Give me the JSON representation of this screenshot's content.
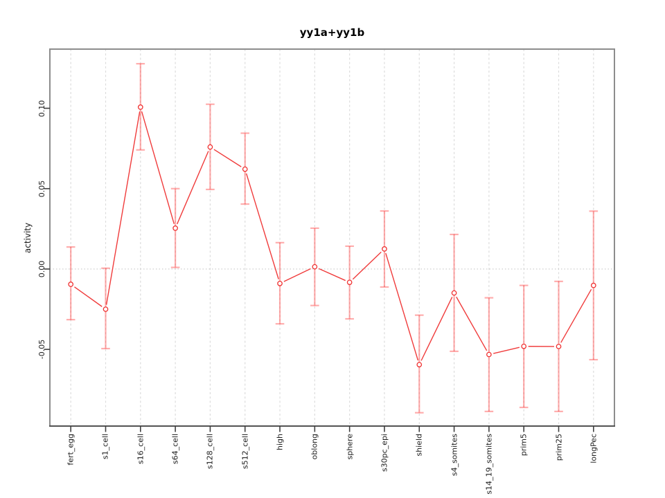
{
  "figure": {
    "title": "yy1a+yy1b",
    "background": "#ffffff"
  },
  "chart_data": {
    "type": "line",
    "title": "yy1a+yy1b",
    "xlabel": "",
    "ylabel": "activity",
    "categories": [
      "fert_egg",
      "s1_cell",
      "s16_cell",
      "s64_cell",
      "s128_cell",
      "s512_cell",
      "high",
      "oblong",
      "sphere",
      "s30pc_epi",
      "shield",
      "s4_somites",
      "s14_19_somites",
      "prim5",
      "prim25",
      "longPec"
    ],
    "series": [
      {
        "name": "yy1a+yy1b activity",
        "values": [
          -0.0095,
          -0.025,
          0.1007,
          0.0254,
          0.0759,
          0.0621,
          -0.009,
          0.0014,
          -0.0083,
          0.0125,
          -0.0595,
          -0.0149,
          -0.0532,
          -0.0481,
          -0.0482,
          -0.0102
        ],
        "error_low": [
          -0.0315,
          -0.0495,
          0.0741,
          0.001,
          0.0495,
          0.0404,
          -0.0341,
          -0.0227,
          -0.031,
          -0.0112,
          -0.0894,
          -0.0512,
          -0.0886,
          -0.0861,
          -0.0886,
          -0.0564
        ],
        "error_high": [
          0.0137,
          0.0005,
          0.1277,
          0.05,
          0.1025,
          0.0845,
          0.0164,
          0.0254,
          0.0142,
          0.0361,
          -0.0287,
          0.0215,
          -0.0179,
          -0.0102,
          -0.0077,
          0.036
        ]
      }
    ],
    "point_style": "open-circle",
    "line_style": "segments-with-gaps-around-points",
    "x_tick_label_rotation": 90,
    "y_tick_label_rotation": 90,
    "y_tick_labels": [
      "-0.05",
      "0.00",
      "0.05",
      "0.10"
    ],
    "y_tick_values": [
      -0.05,
      0,
      0.05,
      0.1
    ],
    "ylim": [
      -0.0977,
      0.1368
    ],
    "xlim": [
      0.4,
      16.6
    ],
    "grid": {
      "vertical_dashed_at_each_category": true,
      "horizontal_dotted_at_zero": true,
      "other_horizontal_gridlines": false
    },
    "legend": "none",
    "colors": {
      "series_line": "#f03b3b",
      "point_outline": "#f03030",
      "error_bar": "#ff3c3c",
      "error_bar_opacity": "0.42",
      "grid_line": "#dcdcdc",
      "zero_line": "#c8c8c8",
      "plot_border": "#8c8c8c",
      "axis_line": "#3f3f3f",
      "tick_color": "#3f3f3f",
      "text": "#1c1c1c"
    }
  }
}
